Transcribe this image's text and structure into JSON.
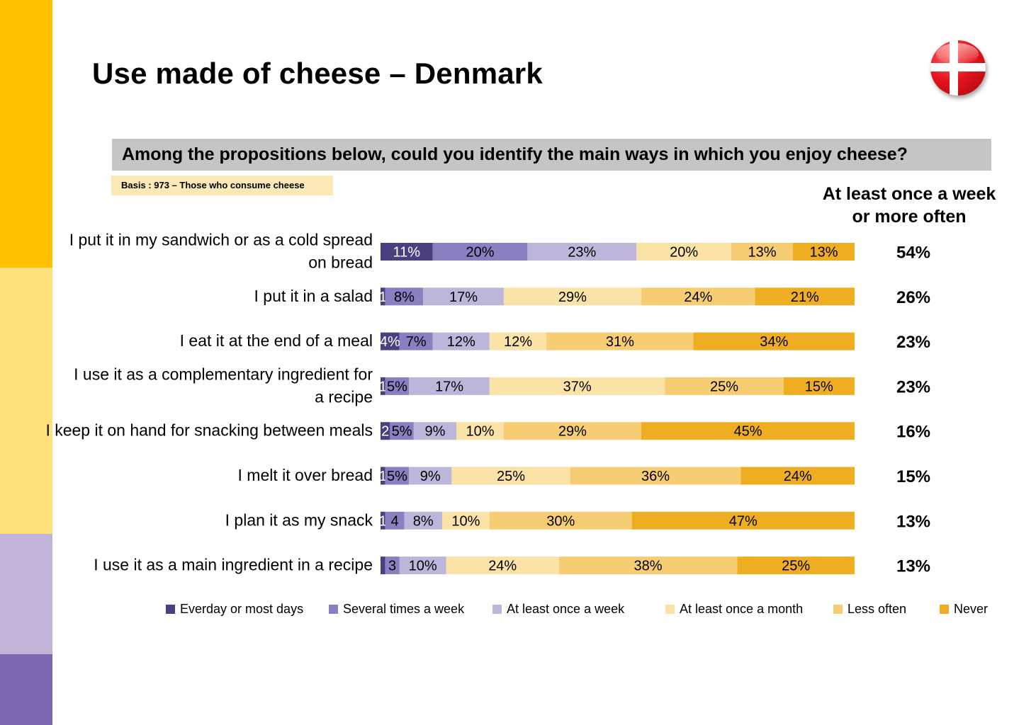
{
  "title": "Use made of cheese – Denmark",
  "question": "Among the propositions below, could you identify the main ways in which you enjoy cheese?",
  "basis": "Basis : 973 – Those who consume cheese",
  "summary_heading": [
    "At least once a week",
    "or more often"
  ],
  "colors": {
    "sidebar": [
      "#ffc000",
      "#ffe07a",
      "#c0b5d8",
      "#7a68b0"
    ],
    "question_bg": "#c5c5c5",
    "basis_bg": "#fbe9b7",
    "flag_red": "#e4141c"
  },
  "chart_data": {
    "type": "bar",
    "orientation": "horizontal",
    "stacked": true,
    "categories": [
      [
        "I put it in my sandwich or as a cold spread",
        "on bread"
      ],
      [
        "I put it in a salad"
      ],
      [
        "I eat it at the end of a meal"
      ],
      [
        "I use it as a complementary ingredient for",
        "a recipe"
      ],
      [
        "I keep it on hand for snacking between meals"
      ],
      [
        "I melt it over bread"
      ],
      [
        "I plan it as my snack"
      ],
      [
        "I use it as a main ingredient in a recipe"
      ]
    ],
    "series": [
      {
        "name": "Everday or most days",
        "color": "#4b3f7f",
        "values": [
          11,
          1,
          4,
          1,
          2,
          1,
          1,
          1
        ],
        "labels": [
          "11%",
          "1",
          "4%",
          "1",
          "2",
          "1",
          "1",
          ""
        ]
      },
      {
        "name": "Several times a week",
        "color": "#8a7fc0",
        "values": [
          20,
          8,
          7,
          5,
          5,
          5,
          4,
          3
        ],
        "labels": [
          "20%",
          "8%",
          "7%",
          "5%",
          "5%",
          "5%",
          "4",
          "3"
        ]
      },
      {
        "name": "At least once a week",
        "color": "#bdb6da",
        "values": [
          23,
          17,
          12,
          17,
          9,
          9,
          8,
          10
        ],
        "labels": [
          "23%",
          "17%",
          "12%",
          "17%",
          "9%",
          "9%",
          "8%",
          "10%"
        ]
      },
      {
        "name": "At least once a month",
        "color": "#fbe2a6",
        "values": [
          20,
          29,
          12,
          37,
          10,
          25,
          10,
          24
        ],
        "labels": [
          "20%",
          "29%",
          "12%",
          "37%",
          "10%",
          "25%",
          "10%",
          "24%"
        ]
      },
      {
        "name": "Less often",
        "color": "#f7cd74",
        "values": [
          13,
          24,
          31,
          25,
          29,
          36,
          30,
          38
        ],
        "labels": [
          "13%",
          "24%",
          "31%",
          "25%",
          "29%",
          "36%",
          "30%",
          "38%"
        ]
      },
      {
        "name": "Never",
        "color": "#efae22",
        "values": [
          13,
          21,
          34,
          15,
          45,
          24,
          47,
          25
        ],
        "labels": [
          "13%",
          "21%",
          "34%",
          "15%",
          "45%",
          "24%",
          "47%",
          "25%"
        ]
      }
    ],
    "summary_values": [
      "54%",
      "26%",
      "23%",
      "23%",
      "16%",
      "15%",
      "13%",
      "13%"
    ],
    "legend_position": "bottom",
    "grid": false
  }
}
